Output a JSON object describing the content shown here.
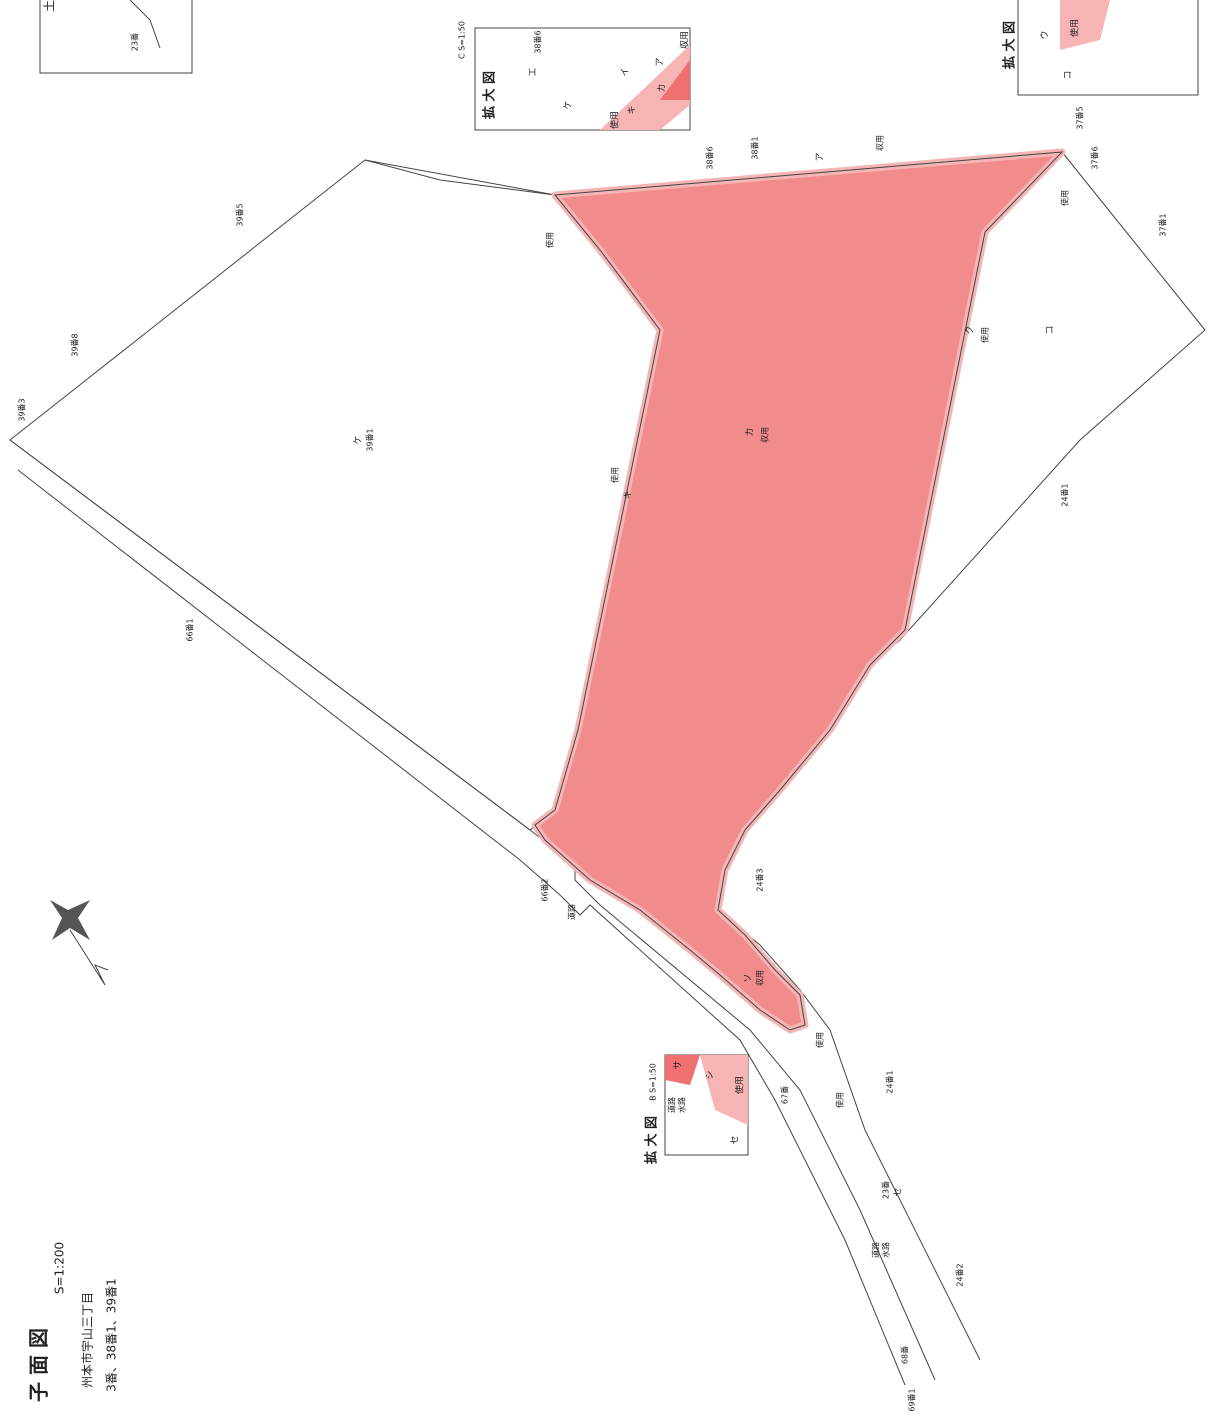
{
  "title": {
    "heading": "子 面 図",
    "scale": "S=1:200",
    "address": "州本市宇山三丁目",
    "lots": "3番、38番1、39番1"
  },
  "inset_c": {
    "heading": "拡 大 図",
    "scale": "C S=1:50",
    "labels": [
      "収用",
      "使用",
      "ア",
      "イ",
      "カ",
      "キ",
      "エ",
      "ケ",
      "38番6"
    ]
  },
  "inset_b": {
    "heading": "拡 大 図",
    "scale": "B S=1:50",
    "labels": [
      "使用",
      "サ",
      "シ",
      "セ",
      "道路",
      "水路"
    ]
  },
  "inset_tr": {
    "heading": "拡 大 図",
    "labels": [
      "使用",
      "ウ",
      "コ"
    ]
  },
  "inset_tl": {
    "labels": [
      "土",
      "23番"
    ]
  },
  "lots": [
    "39番1",
    "39番3",
    "39番5",
    "39番8",
    "38番6",
    "38番1",
    "37番5",
    "37番6",
    "37番1",
    "24番1",
    "24番3",
    "24番1",
    "24番2",
    "23番",
    "66番1",
    "66番2",
    "67番",
    "68番",
    "69番1"
  ],
  "roads": [
    "道路",
    "道路",
    "水路"
  ],
  "usage": [
    "使用",
    "使用",
    "使用",
    "使用",
    "使用",
    "使用",
    "収用",
    "収用",
    "収用"
  ],
  "areas": [
    "ケ",
    "カ",
    "キ",
    "ク",
    "コ",
    "ア",
    "ソ",
    "セ"
  ]
}
